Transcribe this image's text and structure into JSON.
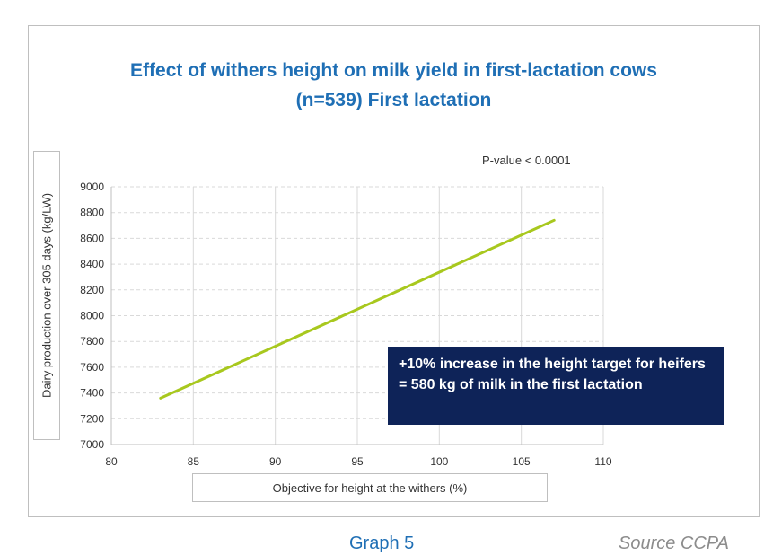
{
  "chart_data": {
    "type": "line",
    "title_line1": "Effect of withers height on milk yield in first-lactation cows",
    "title_line2": "(n=539) First lactation",
    "xlabel": "Objective for height at the withers (%)",
    "ylabel": "Dairy production over 305 days (kg/LW)",
    "xlim": [
      80,
      110
    ],
    "ylim": [
      7000,
      9000
    ],
    "x_ticks": [
      "80",
      "85",
      "90",
      "95",
      "100",
      "105",
      "110"
    ],
    "y_ticks": [
      "7000",
      "7200",
      "7400",
      "7600",
      "7800",
      "8000",
      "8200",
      "8400",
      "8600",
      "8800",
      "9000"
    ],
    "grid": true,
    "series": [
      {
        "x": [
          83,
          107
        ],
        "y": [
          7360,
          8740
        ],
        "color": "#a8c81e"
      }
    ],
    "annotations": {
      "p_value": "P-value < 0.0001",
      "callout": "+10% increase in the height target for heifers = 580 kg of milk in the first lactation"
    }
  },
  "footer": {
    "caption": "Graph 5",
    "source": "Source CCPA"
  },
  "colors": {
    "title": "#1f6fb5",
    "callout_bg": "#0e2358",
    "line": "#a8c81e",
    "grid": "#d9d9d9"
  }
}
